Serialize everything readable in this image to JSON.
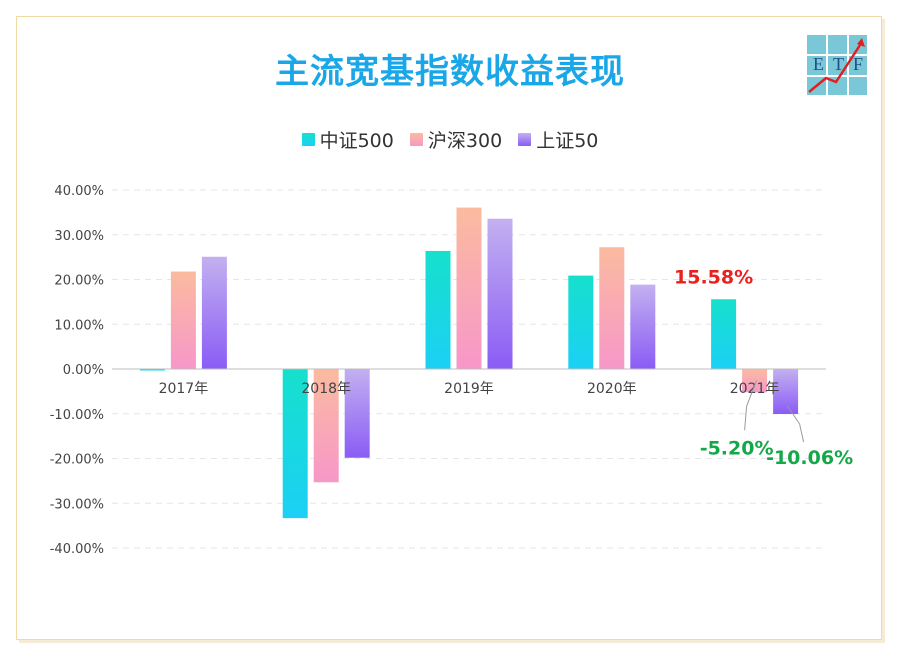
{
  "logo": {
    "letters": [
      "E",
      "T",
      "F"
    ]
  },
  "chart_data": {
    "type": "bar",
    "title": "主流宽基指数收益表现",
    "categories": [
      "2017年",
      "2018年",
      "2019年",
      "2020年",
      "2021年"
    ],
    "series": [
      {
        "name": "中证500",
        "values": [
          -0.2,
          -33.32,
          26.38,
          20.87,
          15.58
        ],
        "color_top": "#16e0cc",
        "color_bottom": "#1bd0f5"
      },
      {
        "name": "沪深300",
        "values": [
          21.78,
          -25.31,
          36.07,
          27.21,
          -5.2
        ],
        "color_top": "#fbbb9f",
        "color_bottom": "#f797c9"
      },
      {
        "name": "上证50",
        "values": [
          25.08,
          -19.83,
          33.58,
          18.85,
          -10.06
        ],
        "color_top": "#c3b0f0",
        "color_bottom": "#8a5cf5"
      }
    ],
    "ylim": [
      -40,
      40
    ],
    "yticks": [
      "40.00%",
      "30.00%",
      "20.00%",
      "10.00%",
      "0.00%",
      "-10.00%",
      "-20.00%",
      "-30.00%",
      "-40.00%"
    ],
    "ytick_values": [
      40,
      30,
      20,
      10,
      0,
      -10,
      -20,
      -30,
      -40
    ],
    "grid": true,
    "legend_position": "top-center",
    "annotations": [
      {
        "text": "15.58%",
        "series": 0,
        "category": 4,
        "color": "#e8211d"
      },
      {
        "text": "-5.20%",
        "series": 1,
        "category": 4,
        "color": "#14a84a"
      },
      {
        "text": "-10.06%",
        "series": 2,
        "category": 4,
        "color": "#14a84a"
      }
    ]
  }
}
